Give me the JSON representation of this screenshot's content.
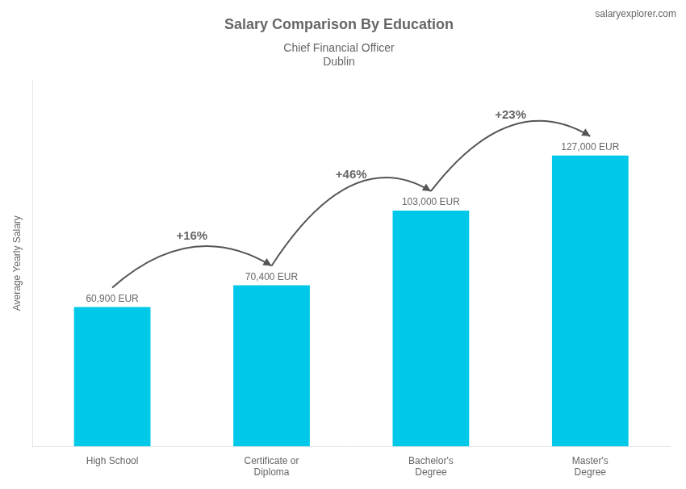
{
  "chart_data": {
    "type": "bar",
    "title": "Salary Comparison By Education",
    "subtitle": [
      "Chief Financial Officer",
      "Dublin"
    ],
    "source": "salaryexplorer.com",
    "categories": [
      "High School",
      "Certificate or\nDiploma",
      "Bachelor's\nDegree",
      "Master's\nDegree"
    ],
    "values": [
      60900,
      70400,
      103000,
      127000
    ],
    "value_labels": [
      "60,900 EUR",
      "70,400 EUR",
      "103,000 EUR",
      "127,000 EUR"
    ],
    "data_labels": true,
    "annotations": [
      "+16%",
      "+46%",
      "+23%"
    ],
    "color": "#00c8e8",
    "ylabel": "Average Yearly Salary",
    "ylim": [
      0,
      160000
    ],
    "grid": false,
    "tick_labels": "x"
  }
}
